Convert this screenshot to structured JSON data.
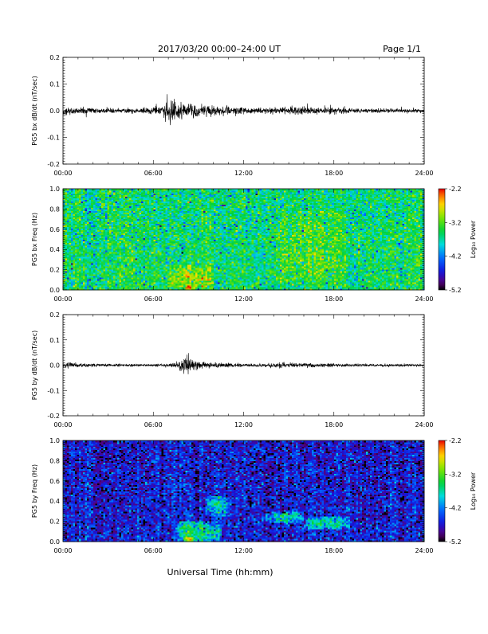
{
  "header": {
    "title": "2017/03/20  00:00–24:00 UT",
    "page": "Page 1/1"
  },
  "footer": {
    "xlabel": "Universal Time (hh:mm)"
  },
  "colorbar": {
    "label": "Log₁₀ Power",
    "ticks": [
      "-2.2",
      "-3.2",
      "-4.2",
      "-5.2"
    ],
    "range": [
      -5.2,
      -2.2
    ]
  },
  "chart_data": [
    {
      "type": "line",
      "ylabel": "PG5 bx dB/dt (nT/sec)",
      "xlim": [
        0,
        24
      ],
      "ylim": [
        -0.2,
        0.2
      ],
      "x_tick_labels": [
        "00:00",
        "06:00",
        "12:00",
        "18:00",
        "24:00"
      ],
      "y_tick_labels": [
        "0.2",
        "0.1",
        "0.0",
        "-0.1",
        "-0.2"
      ],
      "grid": false,
      "series": [
        {
          "x": [
            0,
            1,
            2,
            3,
            4,
            5,
            6,
            6.5,
            7,
            7.2,
            7.5,
            8,
            8.5,
            9,
            10,
            11,
            12,
            13,
            14,
            15,
            15.5,
            16,
            17,
            18,
            19,
            20,
            21,
            22,
            23,
            24
          ],
          "amplitude": [
            0.012,
            0.01,
            0.008,
            0.006,
            0.007,
            0.008,
            0.01,
            0.015,
            0.035,
            0.045,
            0.03,
            0.025,
            0.02,
            0.018,
            0.015,
            0.012,
            0.01,
            0.008,
            0.009,
            0.01,
            0.015,
            0.012,
            0.009,
            0.01,
            0.008,
            0.007,
            0.007,
            0.006,
            0.006,
            0.006
          ]
        }
      ]
    },
    {
      "type": "heatmap",
      "ylabel": "PG5 bx Freq (Hz)",
      "xlim": [
        0,
        24
      ],
      "ylim": [
        0,
        1.0
      ],
      "x_tick_labels": [
        "00:00",
        "06:00",
        "12:00",
        "18:00",
        "24:00"
      ],
      "y_tick_labels": [
        "1.0",
        "0.8",
        "0.6",
        "0.4",
        "0.2",
        "0.0"
      ],
      "colorbar": "Log₁₀ Power",
      "z_range": [
        -5.2,
        -2.2
      ],
      "background_log_power": -3.6,
      "features": [
        {
          "t": [
            7,
            10
          ],
          "f": [
            0,
            0.25
          ],
          "log_power": -3.0
        },
        {
          "t": [
            8,
            8.8
          ],
          "f": [
            0,
            0.05
          ],
          "log_power": -2.7
        },
        {
          "t": [
            14,
            19
          ],
          "f": [
            0.05,
            0.8
          ],
          "log_power": -3.3
        }
      ]
    },
    {
      "type": "line",
      "ylabel": "PG5 by dB/dt (nT/sec)",
      "xlim": [
        0,
        24
      ],
      "ylim": [
        -0.2,
        0.2
      ],
      "x_tick_labels": [
        "00:00",
        "06:00",
        "12:00",
        "18:00",
        "24:00"
      ],
      "y_tick_labels": [
        "0.2",
        "0.1",
        "0.0",
        "-0.1",
        "-0.2"
      ],
      "grid": false,
      "series": [
        {
          "x": [
            0,
            0.5,
            1,
            2,
            3,
            4,
            5,
            6,
            7,
            7.5,
            8,
            8.2,
            8.5,
            9,
            10,
            11,
            12,
            13,
            14,
            15,
            16,
            17,
            18,
            19,
            20,
            21,
            22,
            23,
            24
          ],
          "amplitude": [
            0.008,
            0.01,
            0.007,
            0.005,
            0.004,
            0.004,
            0.004,
            0.004,
            0.005,
            0.01,
            0.03,
            0.045,
            0.02,
            0.012,
            0.008,
            0.007,
            0.006,
            0.006,
            0.007,
            0.008,
            0.007,
            0.006,
            0.006,
            0.005,
            0.005,
            0.004,
            0.004,
            0.004,
            0.004
          ]
        }
      ]
    },
    {
      "type": "heatmap",
      "ylabel": "PG5 by Freq (Hz)",
      "xlim": [
        0,
        24
      ],
      "ylim": [
        0,
        1.0
      ],
      "x_tick_labels": [
        "00:00",
        "06:00",
        "12:00",
        "18:00",
        "24:00"
      ],
      "y_tick_labels": [
        "1.0",
        "0.8",
        "0.6",
        "0.4",
        "0.2",
        "0.0"
      ],
      "colorbar": "Log₁₀ Power",
      "z_range": [
        -5.2,
        -2.2
      ],
      "background_log_power": -4.7,
      "features": [
        {
          "t": [
            7.5,
            10.5
          ],
          "f": [
            0,
            0.2
          ],
          "log_power": -3.6
        },
        {
          "t": [
            8,
            8.8
          ],
          "f": [
            0,
            0.06
          ],
          "log_power": -2.8
        },
        {
          "t": [
            9.5,
            11
          ],
          "f": [
            0.25,
            0.45
          ],
          "log_power": -3.9
        },
        {
          "t": [
            13.5,
            16
          ],
          "f": [
            0.18,
            0.3
          ],
          "log_power": -3.8
        },
        {
          "t": [
            16,
            19
          ],
          "f": [
            0.12,
            0.25
          ],
          "log_power": -3.7
        }
      ]
    }
  ]
}
